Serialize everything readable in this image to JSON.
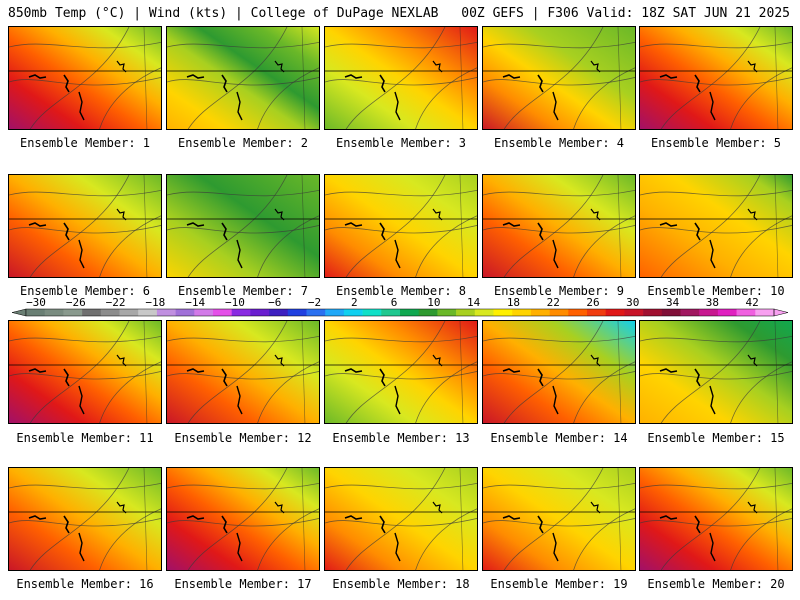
{
  "header": {
    "left": "850mb Temp (°C) | Wind (kts) | College of DuPage NEXLAB",
    "right": "00Z GEFS | F306 Valid: 18Z SAT JUN 21 2025"
  },
  "colorbar": {
    "tick_labels": [
      "−30",
      "−26",
      "−22",
      "−18",
      "−14",
      "−10",
      "−6",
      "−2",
      "2",
      "6",
      "10",
      "14",
      "18",
      "22",
      "26",
      "30",
      "34",
      "38",
      "42"
    ],
    "colors": [
      "#6a7f74",
      "#7a8c80",
      "#8a9a8e",
      "#707070",
      "#8c8c8c",
      "#a8a8a8",
      "#c8c8c8",
      "#c08fe0",
      "#a070d8",
      "#d27ae8",
      "#e44fe8",
      "#8a2be2",
      "#6a1ed0",
      "#3d20c0",
      "#2040e0",
      "#2a70f0",
      "#20a8f8",
      "#10d0f0",
      "#10e0c8",
      "#20c890",
      "#10a850",
      "#2e9a30",
      "#6ab828",
      "#a8d020",
      "#d8e820",
      "#fff000",
      "#ffd400",
      "#ffb000",
      "#ff8c00",
      "#ff6000",
      "#f03c10",
      "#e01818",
      "#c81428",
      "#a01030",
      "#801038",
      "#a01860",
      "#c81890",
      "#e020c0",
      "#f060e0",
      "#f8a0f0"
    ]
  },
  "panels": [
    {
      "label": "Ensemble Member: 1",
      "profile": "hot_sw"
    },
    {
      "label": "Ensemble Member: 2",
      "profile": "cool_center"
    },
    {
      "label": "Ensemble Member: 3",
      "profile": "hot_south"
    },
    {
      "label": "Ensemble Member: 4",
      "profile": "mild_green"
    },
    {
      "label": "Ensemble Member: 5",
      "profile": "hot_sw"
    },
    {
      "label": "Ensemble Member: 6",
      "profile": "warm_sw"
    },
    {
      "label": "Ensemble Member: 7",
      "profile": "green"
    },
    {
      "label": "Ensemble Member: 8",
      "profile": "warm_yellow"
    },
    {
      "label": "Ensemble Member: 9",
      "profile": "warm_sw"
    },
    {
      "label": "Ensemble Member: 10",
      "profile": "mild_orange"
    },
    {
      "label": "Ensemble Member: 11",
      "profile": "hot_sw"
    },
    {
      "label": "Ensemble Member: 12",
      "profile": "warm_sw"
    },
    {
      "label": "Ensemble Member: 13",
      "profile": "hot_south"
    },
    {
      "label": "Ensemble Member: 14",
      "profile": "cool_ne"
    },
    {
      "label": "Ensemble Member: 15",
      "profile": "cool_ne2"
    },
    {
      "label": "Ensemble Member: 16",
      "profile": "warm_sw"
    },
    {
      "label": "Ensemble Member: 17",
      "profile": "hot_sw"
    },
    {
      "label": "Ensemble Member: 18",
      "profile": "warm_yellow"
    },
    {
      "label": "Ensemble Member: 19",
      "profile": "warm_yellow"
    },
    {
      "label": "Ensemble Member: 20",
      "profile": "hot_sw"
    }
  ]
}
